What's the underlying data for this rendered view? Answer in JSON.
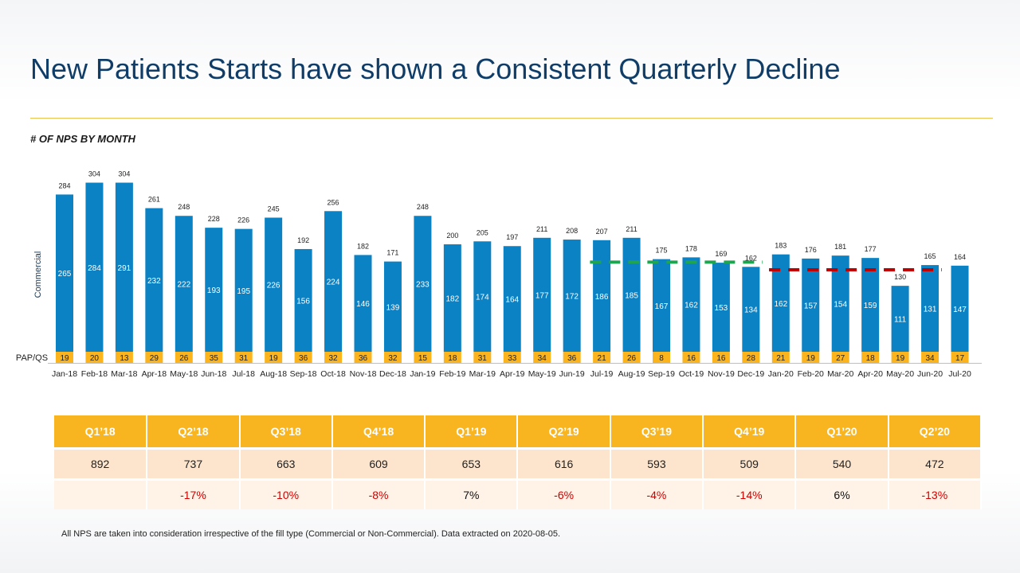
{
  "title": "New Patients Starts have shown a Consistent Quarterly Decline",
  "chart_subtitle": "# OF NPS BY MONTH",
  "footnote": "All NPS are taken into consideration irrespective of the fill type (Commercial or Non-Commercial). Data extracted on 2020-08-05.",
  "colors": {
    "commercial": "#0b82c4",
    "papqs": "#fbb41c",
    "green_line": "#1fa552",
    "red_line": "#c00000",
    "title": "#0f3d68",
    "header": "#f9b51f"
  },
  "chart_data": {
    "type": "bar",
    "stacked": true,
    "categories": [
      "Jan-18",
      "Feb-18",
      "Mar-18",
      "Apr-18",
      "May-18",
      "Jun-18",
      "Jul-18",
      "Aug-18",
      "Sep-18",
      "Oct-18",
      "Nov-18",
      "Dec-18",
      "Jan-19",
      "Feb-19",
      "Mar-19",
      "Apr-19",
      "May-19",
      "Jun-19",
      "Jul-19",
      "Aug-19",
      "Sep-19",
      "Oct-19",
      "Nov-19",
      "Dec-19",
      "Jan-20",
      "Feb-20",
      "Mar-20",
      "Apr-20",
      "May-20",
      "Jun-20",
      "Jul-20"
    ],
    "series": [
      {
        "name": "PAP/QS",
        "values": [
          19,
          20,
          13,
          29,
          26,
          35,
          31,
          19,
          36,
          32,
          36,
          32,
          15,
          18,
          31,
          33,
          34,
          36,
          21,
          26,
          8,
          16,
          16,
          28,
          21,
          19,
          27,
          18,
          19,
          34,
          17
        ]
      },
      {
        "name": "Commercial",
        "values": [
          265,
          284,
          291,
          232,
          222,
          193,
          195,
          226,
          156,
          224,
          146,
          139,
          233,
          182,
          174,
          164,
          177,
          172,
          186,
          185,
          167,
          162,
          153,
          134,
          162,
          157,
          154,
          159,
          111,
          131,
          147
        ]
      }
    ],
    "totals": [
      284,
      304,
      304,
      261,
      248,
      228,
      226,
      245,
      192,
      256,
      182,
      171,
      248,
      200,
      205,
      197,
      211,
      208,
      207,
      211,
      175,
      178,
      169,
      162,
      183,
      176,
      181,
      177,
      130,
      165,
      164
    ],
    "reference_lines": [
      {
        "color": "green",
        "style": "dashed",
        "from": "Jul-19",
        "to": "Dec-19",
        "value": 170
      },
      {
        "color": "red",
        "style": "dashed",
        "from": "Jan-20",
        "to": "Jun-20",
        "value": 157
      }
    ],
    "ylim": [
      0,
      320
    ]
  },
  "table": {
    "headers": [
      "Q1’18",
      "Q2’18",
      "Q3’18",
      "Q4’18",
      "Q1’19",
      "Q2’19",
      "Q3’19",
      "Q4’19",
      "Q1’20",
      "Q2’20"
    ],
    "values": [
      "892",
      "737",
      "663",
      "609",
      "653",
      "616",
      "593",
      "509",
      "540",
      "472"
    ],
    "changes": [
      "",
      "-17%",
      "-10%",
      "-8%",
      "7%",
      "-6%",
      "-4%",
      "-14%",
      "6%",
      "-13%"
    ]
  }
}
